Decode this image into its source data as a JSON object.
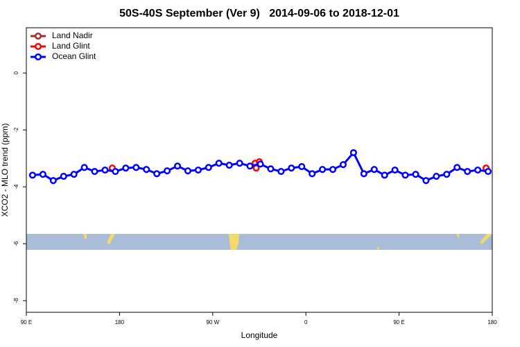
{
  "chart_data": {
    "type": "line",
    "title": "50S-40S September (Ver 9)   2014-09-06 to 2018-12-01",
    "x_label": "Longitude",
    "y_label": "XCO2 - MLO trend (ppm)",
    "xlim": [
      90,
      540
    ],
    "xticks": [
      {
        "value": 90,
        "label": "90 E"
      },
      {
        "value": 180,
        "label": "180"
      },
      {
        "value": 270,
        "label": "90 W"
      },
      {
        "value": 360,
        "label": "0"
      },
      {
        "value": 450,
        "label": "90 E"
      },
      {
        "value": 540,
        "label": "180"
      }
    ],
    "ylim": [
      -8.41,
      1.59
    ],
    "yticks": [
      0,
      -2,
      -4,
      -6,
      -8
    ],
    "legend": "top-left",
    "series": [
      {
        "name": "Land Nadir",
        "color": "#a52a2a",
        "x": [],
        "values": []
      },
      {
        "name": "Land Glint",
        "color": "#ff0000",
        "x": [
          173,
          311,
          312,
          315,
          534
        ],
        "values": [
          -3.34,
          -3.17,
          -3.34,
          -3.12,
          -3.34
        ]
      },
      {
        "name": "Ocean Glint",
        "color": "#0000ff",
        "x": [
          96,
          106,
          116,
          126,
          136,
          146,
          156,
          166,
          176,
          186,
          196,
          206,
          216,
          226,
          236,
          246,
          256,
          266,
          276,
          286,
          296,
          306,
          316,
          326,
          336,
          346,
          356,
          366,
          376,
          386,
          396,
          406,
          416,
          426,
          436,
          446,
          456,
          466,
          476,
          486,
          496,
          506,
          516,
          526,
          536
        ],
        "values": [
          -3.59,
          -3.56,
          -3.78,
          -3.63,
          -3.56,
          -3.32,
          -3.46,
          -3.41,
          -3.46,
          -3.34,
          -3.32,
          -3.39,
          -3.54,
          -3.44,
          -3.27,
          -3.44,
          -3.41,
          -3.32,
          -3.17,
          -3.24,
          -3.17,
          -3.27,
          -3.2,
          -3.37,
          -3.46,
          -3.34,
          -3.29,
          -3.54,
          -3.39,
          -3.39,
          -3.22,
          -2.8,
          -3.54,
          -3.39,
          -3.59,
          -3.41,
          -3.59,
          -3.56,
          -3.78,
          -3.63,
          -3.56,
          -3.32,
          -3.46,
          -3.41,
          -3.46
        ]
      }
    ]
  }
}
